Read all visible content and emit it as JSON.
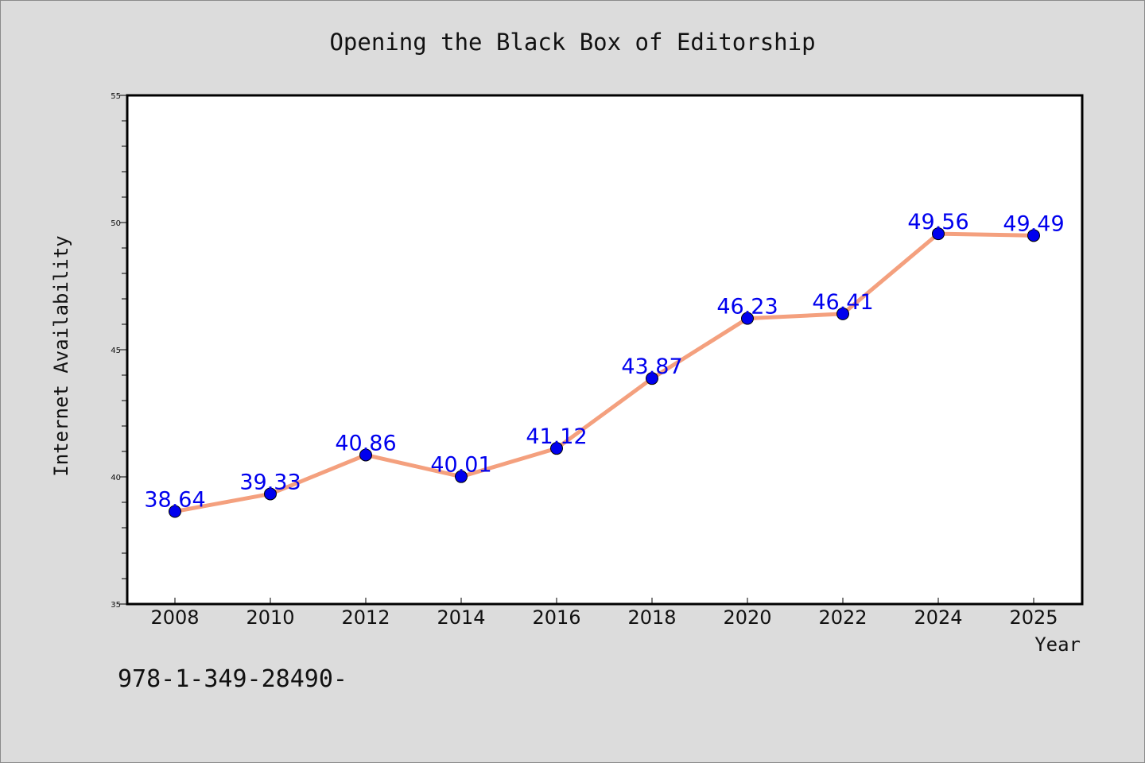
{
  "chart_data": {
    "type": "line",
    "title": "Opening the Black Box of Editorship",
    "xlabel": "Year",
    "ylabel": "Internet Availability",
    "categories": [
      "2008",
      "2010",
      "2012",
      "2014",
      "2016",
      "2018",
      "2020",
      "2022",
      "2024",
      "2025"
    ],
    "series": [
      {
        "values": [
          38.64,
          39.33,
          40.86,
          40.01,
          41.12,
          43.87,
          46.23,
          46.41,
          49.56,
          49.49
        ]
      }
    ],
    "data_labels": [
      "38.64",
      "39.33",
      "40.86",
      "40.01",
      "41.12",
      "43.87",
      "46.23",
      "46.41",
      "49.56",
      "49.49"
    ],
    "ylim": [
      35,
      55
    ],
    "yticks": [
      "35",
      "40",
      "45",
      "50",
      "55"
    ],
    "grid": false,
    "line_color": "#f4a07e",
    "marker_color": "#0000ee",
    "label_color": "#0000ee",
    "plot_background": "#ffffff",
    "figure_background": "#dcdcdc"
  },
  "footer": {
    "text": "978-1-349-28490-"
  }
}
